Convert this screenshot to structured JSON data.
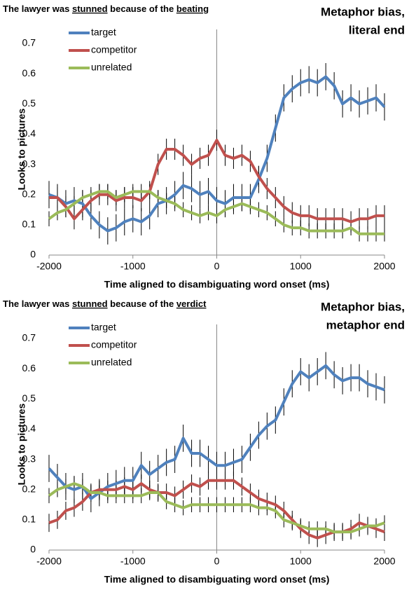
{
  "chart_data": [
    {
      "type": "line",
      "title": [
        {
          "text": "The lawyer was "
        },
        {
          "text": "stunned",
          "underline": true
        },
        {
          "text": " because of the "
        },
        {
          "text": "beating",
          "underline": true
        }
      ],
      "annotation": [
        "Metaphor bias,",
        "literal end"
      ],
      "x_label": "Time aligned to disambiguating word onset (ms)",
      "y_label": "Looks to pictures",
      "xlim": [
        -2000,
        2000
      ],
      "xticks": [
        -2000,
        -1000,
        0,
        1000,
        2000
      ],
      "ylim": [
        0,
        0.7
      ],
      "yticks": [
        0,
        0.1,
        0.2,
        0.3,
        0.4,
        0.5,
        0.6,
        0.7
      ],
      "legend": "top-left",
      "x": [
        -2000,
        -1900,
        -1800,
        -1700,
        -1600,
        -1500,
        -1400,
        -1300,
        -1200,
        -1100,
        -1000,
        -900,
        -800,
        -700,
        -600,
        -500,
        -400,
        -300,
        -200,
        -100,
        0,
        100,
        200,
        300,
        400,
        500,
        600,
        700,
        800,
        900,
        1000,
        1100,
        1200,
        1300,
        1400,
        1500,
        1600,
        1700,
        1800,
        1900,
        2000
      ],
      "series": [
        {
          "name": "target",
          "color": "#4f81bd",
          "error": 0.045,
          "values": [
            0.2,
            0.19,
            0.17,
            0.18,
            0.17,
            0.13,
            0.1,
            0.08,
            0.09,
            0.11,
            0.12,
            0.11,
            0.13,
            0.17,
            0.18,
            0.2,
            0.23,
            0.22,
            0.2,
            0.21,
            0.18,
            0.17,
            0.19,
            0.19,
            0.19,
            0.25,
            0.32,
            0.42,
            0.52,
            0.55,
            0.57,
            0.58,
            0.57,
            0.59,
            0.56,
            0.5,
            0.52,
            0.5,
            0.51,
            0.52,
            0.49
          ]
        },
        {
          "name": "competitor",
          "color": "#c0504d",
          "error": 0.035,
          "values": [
            0.19,
            0.19,
            0.16,
            0.12,
            0.15,
            0.18,
            0.2,
            0.2,
            0.18,
            0.19,
            0.19,
            0.18,
            0.21,
            0.3,
            0.35,
            0.35,
            0.33,
            0.3,
            0.32,
            0.33,
            0.38,
            0.33,
            0.32,
            0.33,
            0.31,
            0.26,
            0.22,
            0.19,
            0.16,
            0.14,
            0.13,
            0.13,
            0.12,
            0.12,
            0.12,
            0.12,
            0.11,
            0.12,
            0.12,
            0.13,
            0.13
          ]
        },
        {
          "name": "unrelated",
          "color": "#9bbb59",
          "error": 0.025,
          "values": [
            0.12,
            0.14,
            0.15,
            0.17,
            0.19,
            0.2,
            0.21,
            0.21,
            0.19,
            0.2,
            0.21,
            0.21,
            0.21,
            0.19,
            0.18,
            0.17,
            0.15,
            0.14,
            0.13,
            0.14,
            0.13,
            0.15,
            0.16,
            0.17,
            0.16,
            0.15,
            0.14,
            0.12,
            0.1,
            0.09,
            0.09,
            0.08,
            0.08,
            0.08,
            0.08,
            0.08,
            0.09,
            0.07,
            0.07,
            0.07,
            0.07
          ]
        }
      ]
    },
    {
      "type": "line",
      "title": [
        {
          "text": "The lawyer was "
        },
        {
          "text": "stunned",
          "underline": true
        },
        {
          "text": " because of the "
        },
        {
          "text": "verdict",
          "underline": true
        }
      ],
      "annotation": [
        "Metaphor bias,",
        "metaphor end"
      ],
      "x_label": "Time aligned to disambiguating word onset (ms)",
      "y_label": "Looks to pictures",
      "xlim": [
        -2000,
        2000
      ],
      "xticks": [
        -2000,
        -1000,
        0,
        1000,
        2000
      ],
      "ylim": [
        0,
        0.7
      ],
      "yticks": [
        0,
        0.1,
        0.2,
        0.3,
        0.4,
        0.5,
        0.6,
        0.7
      ],
      "legend": "top-left",
      "x": [
        -2000,
        -1900,
        -1800,
        -1700,
        -1600,
        -1500,
        -1400,
        -1300,
        -1200,
        -1100,
        -1000,
        -900,
        -800,
        -700,
        -600,
        -500,
        -400,
        -300,
        -200,
        -100,
        0,
        100,
        200,
        300,
        400,
        500,
        600,
        700,
        800,
        900,
        1000,
        1100,
        1200,
        1300,
        1400,
        1500,
        1600,
        1700,
        1800,
        1900,
        2000
      ],
      "series": [
        {
          "name": "target",
          "color": "#4f81bd",
          "error": 0.045,
          "values": [
            0.27,
            0.24,
            0.21,
            0.2,
            0.21,
            0.17,
            0.19,
            0.21,
            0.22,
            0.23,
            0.23,
            0.28,
            0.25,
            0.27,
            0.29,
            0.3,
            0.37,
            0.32,
            0.32,
            0.3,
            0.28,
            0.28,
            0.29,
            0.3,
            0.34,
            0.38,
            0.41,
            0.43,
            0.49,
            0.55,
            0.59,
            0.57,
            0.59,
            0.61,
            0.58,
            0.56,
            0.57,
            0.57,
            0.55,
            0.54,
            0.53
          ]
        },
        {
          "name": "competitor",
          "color": "#c0504d",
          "error": 0.03,
          "values": [
            0.09,
            0.1,
            0.13,
            0.14,
            0.16,
            0.19,
            0.2,
            0.2,
            0.2,
            0.21,
            0.2,
            0.22,
            0.2,
            0.19,
            0.19,
            0.18,
            0.2,
            0.22,
            0.21,
            0.23,
            0.23,
            0.23,
            0.23,
            0.21,
            0.19,
            0.17,
            0.16,
            0.15,
            0.13,
            0.1,
            0.07,
            0.05,
            0.04,
            0.05,
            0.06,
            0.06,
            0.07,
            0.09,
            0.08,
            0.07,
            0.06
          ]
        },
        {
          "name": "unrelated",
          "color": "#9bbb59",
          "error": 0.025,
          "values": [
            0.18,
            0.2,
            0.21,
            0.22,
            0.21,
            0.19,
            0.19,
            0.18,
            0.18,
            0.18,
            0.18,
            0.18,
            0.19,
            0.19,
            0.16,
            0.15,
            0.14,
            0.15,
            0.15,
            0.15,
            0.15,
            0.15,
            0.15,
            0.15,
            0.15,
            0.14,
            0.14,
            0.13,
            0.1,
            0.09,
            0.08,
            0.07,
            0.07,
            0.07,
            0.06,
            0.06,
            0.06,
            0.07,
            0.08,
            0.08,
            0.09
          ]
        }
      ]
    }
  ]
}
